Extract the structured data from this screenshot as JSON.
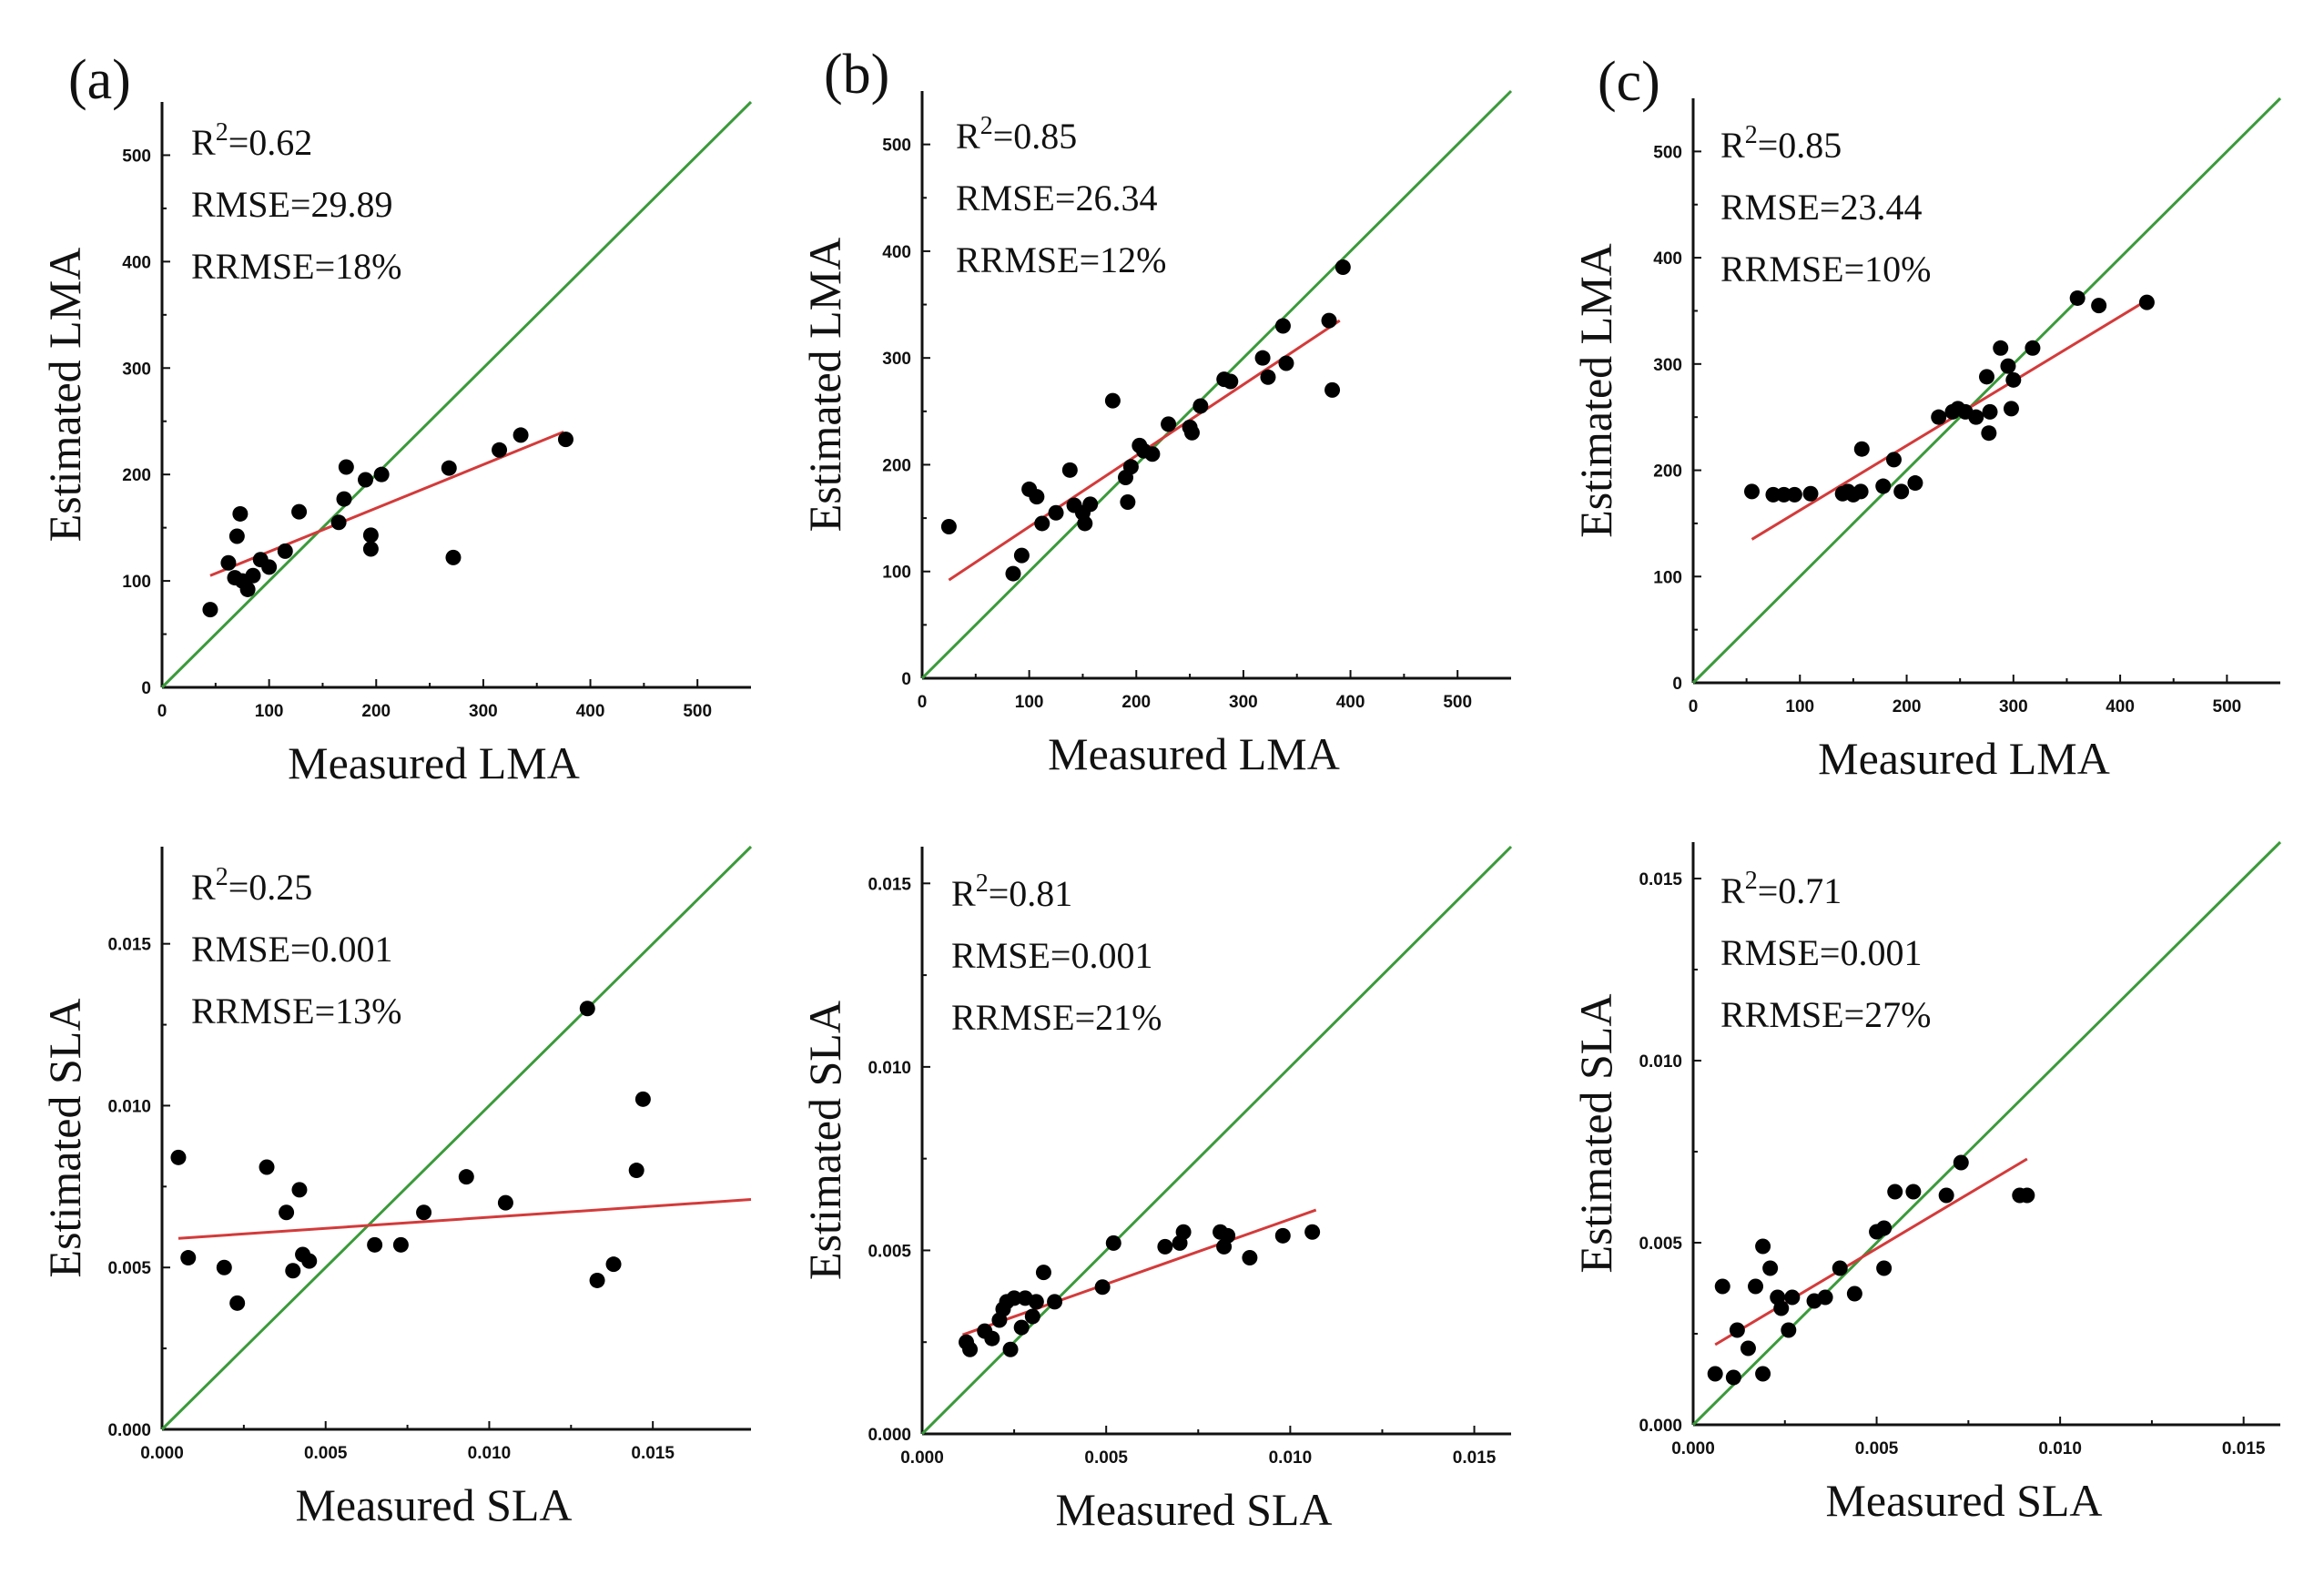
{
  "figure": {
    "colors": {
      "identity_line": "#3a9a3a",
      "fit_line": "#d43a3a",
      "points": "#000000",
      "axis": "#111111"
    }
  },
  "chart_data": [
    {
      "id": "a-lma",
      "type": "scatter",
      "panel_label": "(a)",
      "xlabel": "Measured LMA",
      "ylabel": "Estimated LMA",
      "xlim": [
        0,
        550
      ],
      "ylim": [
        0,
        550
      ],
      "xticks": [
        0,
        100,
        200,
        300,
        400,
        500
      ],
      "yticks": [
        0,
        100,
        200,
        300,
        400,
        500
      ],
      "tick_labels_x": [
        "0",
        "100",
        "200",
        "300",
        "400",
        "500"
      ],
      "tick_labels_y": [
        "0",
        "100",
        "200",
        "300",
        "400",
        "500"
      ],
      "stats": {
        "r2_prefix": "R",
        "r2_exp": "2",
        "r2_value": "=0.62",
        "rmse": "RMSE=29.89",
        "rrmse": "RRMSE=18%"
      },
      "fit_line": [
        [
          45,
          105
        ],
        [
          375,
          240
        ]
      ],
      "points": [
        [
          45,
          73
        ],
        [
          62,
          117
        ],
        [
          68,
          103
        ],
        [
          70,
          142
        ],
        [
          73,
          163
        ],
        [
          75,
          100
        ],
        [
          80,
          92
        ],
        [
          85,
          105
        ],
        [
          92,
          120
        ],
        [
          100,
          113
        ],
        [
          115,
          128
        ],
        [
          128,
          165
        ],
        [
          165,
          155
        ],
        [
          170,
          177
        ],
        [
          172,
          207
        ],
        [
          190,
          195
        ],
        [
          195,
          143
        ],
        [
          195,
          130
        ],
        [
          205,
          200
        ],
        [
          268,
          206
        ],
        [
          272,
          122
        ],
        [
          315,
          223
        ],
        [
          335,
          237
        ],
        [
          377,
          233
        ]
      ]
    },
    {
      "id": "b-lma",
      "type": "scatter",
      "panel_label": "(b)",
      "xlabel": "Measured LMA",
      "ylabel": "Estimated LMA",
      "xlim": [
        0,
        550
      ],
      "ylim": [
        0,
        550
      ],
      "xticks": [
        0,
        100,
        200,
        300,
        400,
        500
      ],
      "yticks": [
        0,
        100,
        200,
        300,
        400,
        500
      ],
      "tick_labels_x": [
        "0",
        "100",
        "200",
        "300",
        "400",
        "500"
      ],
      "tick_labels_y": [
        "0",
        "100",
        "200",
        "300",
        "400",
        "500"
      ],
      "stats": {
        "r2_prefix": "R",
        "r2_exp": "2",
        "r2_value": "=0.85",
        "rmse": "RMSE=26.34",
        "rrmse": "RRMSE=12%"
      },
      "fit_line": [
        [
          25,
          92
        ],
        [
          390,
          335
        ]
      ],
      "points": [
        [
          25,
          142
        ],
        [
          85,
          98
        ],
        [
          93,
          115
        ],
        [
          100,
          177
        ],
        [
          107,
          170
        ],
        [
          112,
          145
        ],
        [
          125,
          155
        ],
        [
          138,
          195
        ],
        [
          142,
          162
        ],
        [
          150,
          155
        ],
        [
          152,
          145
        ],
        [
          157,
          163
        ],
        [
          178,
          260
        ],
        [
          190,
          188
        ],
        [
          192,
          165
        ],
        [
          195,
          198
        ],
        [
          203,
          218
        ],
        [
          207,
          213
        ],
        [
          215,
          210
        ],
        [
          230,
          238
        ],
        [
          250,
          235
        ],
        [
          252,
          230
        ],
        [
          260,
          255
        ],
        [
          282,
          280
        ],
        [
          288,
          278
        ],
        [
          318,
          300
        ],
        [
          323,
          282
        ],
        [
          337,
          330
        ],
        [
          340,
          295
        ],
        [
          380,
          335
        ],
        [
          383,
          270
        ],
        [
          393,
          385
        ]
      ]
    },
    {
      "id": "c-lma",
      "type": "scatter",
      "panel_label": "(c)",
      "xlabel": "Measured LMA",
      "ylabel": "Estimated LMA",
      "xlim": [
        0,
        550
      ],
      "ylim": [
        0,
        550
      ],
      "xticks": [
        0,
        100,
        200,
        300,
        400,
        500
      ],
      "yticks": [
        0,
        100,
        200,
        300,
        400,
        500
      ],
      "tick_labels_x": [
        "0",
        "100",
        "200",
        "300",
        "400",
        "500"
      ],
      "tick_labels_y": [
        "0",
        "100",
        "200",
        "300",
        "400",
        "500"
      ],
      "stats": {
        "r2_prefix": "R",
        "r2_exp": "2",
        "r2_value": "=0.85",
        "rmse": "RMSE=23.44",
        "rrmse": "RRMSE=10%"
      },
      "fit_line": [
        [
          55,
          135
        ],
        [
          425,
          360
        ]
      ],
      "points": [
        [
          55,
          180
        ],
        [
          75,
          177
        ],
        [
          85,
          177
        ],
        [
          95,
          177
        ],
        [
          110,
          178
        ],
        [
          140,
          178
        ],
        [
          145,
          180
        ],
        [
          150,
          177
        ],
        [
          157,
          180
        ],
        [
          158,
          220
        ],
        [
          178,
          185
        ],
        [
          188,
          210
        ],
        [
          195,
          180
        ],
        [
          208,
          188
        ],
        [
          230,
          250
        ],
        [
          243,
          255
        ],
        [
          248,
          258
        ],
        [
          255,
          255
        ],
        [
          265,
          250
        ],
        [
          275,
          288
        ],
        [
          277,
          235
        ],
        [
          278,
          255
        ],
        [
          288,
          315
        ],
        [
          295,
          298
        ],
        [
          298,
          258
        ],
        [
          300,
          285
        ],
        [
          318,
          315
        ],
        [
          360,
          362
        ],
        [
          380,
          355
        ],
        [
          425,
          358
        ]
      ]
    },
    {
      "id": "a-sla",
      "type": "scatter",
      "xlabel": "Measured SLA",
      "ylabel": "Estimated SLA",
      "xlim": [
        0,
        0.018
      ],
      "ylim": [
        0,
        0.018
      ],
      "xticks": [
        0,
        0.005,
        0.01,
        0.015
      ],
      "yticks": [
        0,
        0.005,
        0.01,
        0.015
      ],
      "tick_labels_x": [
        "0.000",
        "0.005",
        "0.010",
        "0.015"
      ],
      "tick_labels_y": [
        "0.000",
        "0.005",
        "0.010",
        "0.015"
      ],
      "stats": {
        "r2_prefix": "R",
        "r2_exp": "2",
        "r2_value": "=0.25",
        "rmse": "RMSE=0.001",
        "rrmse": "RRMSE=13%"
      },
      "fit_line": [
        [
          0.0005,
          0.0059
        ],
        [
          0.018,
          0.0071
        ]
      ],
      "points": [
        [
          0.0005,
          0.0084
        ],
        [
          0.0008,
          0.0053
        ],
        [
          0.0019,
          0.005
        ],
        [
          0.0023,
          0.0039
        ],
        [
          0.0032,
          0.0081
        ],
        [
          0.0038,
          0.0067
        ],
        [
          0.004,
          0.0049
        ],
        [
          0.0042,
          0.0074
        ],
        [
          0.0043,
          0.0054
        ],
        [
          0.0045,
          0.0052
        ],
        [
          0.0065,
          0.0057
        ],
        [
          0.0073,
          0.0057
        ],
        [
          0.008,
          0.0067
        ],
        [
          0.0093,
          0.0078
        ],
        [
          0.0105,
          0.007
        ],
        [
          0.013,
          0.013
        ],
        [
          0.0133,
          0.0046
        ],
        [
          0.0138,
          0.0051
        ],
        [
          0.0145,
          0.008
        ],
        [
          0.0147,
          0.0102
        ]
      ]
    },
    {
      "id": "b-sla",
      "type": "scatter",
      "xlabel": "Measured SLA",
      "ylabel": "Estimated SLA",
      "xlim": [
        0,
        0.016
      ],
      "ylim": [
        0,
        0.016
      ],
      "xticks": [
        0,
        0.005,
        0.01,
        0.015
      ],
      "yticks": [
        0,
        0.005,
        0.01,
        0.015
      ],
      "tick_labels_x": [
        "0.000",
        "0.005",
        "0.010",
        "0.015"
      ],
      "tick_labels_y": [
        "0.000",
        "0.005",
        "0.010",
        "0.015"
      ],
      "stats": {
        "r2_prefix": "R",
        "r2_exp": "2",
        "r2_value": "=0.81",
        "rmse": "RMSE=0.001",
        "rrmse": "RRMSE=21%"
      },
      "fit_line": [
        [
          0.0011,
          0.0027
        ],
        [
          0.0107,
          0.0061
        ]
      ],
      "points": [
        [
          0.0012,
          0.0025
        ],
        [
          0.0013,
          0.0023
        ],
        [
          0.0017,
          0.0028
        ],
        [
          0.0019,
          0.0026
        ],
        [
          0.0021,
          0.0031
        ],
        [
          0.0022,
          0.0034
        ],
        [
          0.0023,
          0.0036
        ],
        [
          0.0024,
          0.0023
        ],
        [
          0.0025,
          0.0037
        ],
        [
          0.0027,
          0.0029
        ],
        [
          0.0028,
          0.0037
        ],
        [
          0.003,
          0.0032
        ],
        [
          0.0031,
          0.0036
        ],
        [
          0.0033,
          0.0044
        ],
        [
          0.0036,
          0.0036
        ],
        [
          0.0049,
          0.004
        ],
        [
          0.0052,
          0.0052
        ],
        [
          0.0066,
          0.0051
        ],
        [
          0.007,
          0.0052
        ],
        [
          0.0071,
          0.0055
        ],
        [
          0.0081,
          0.0055
        ],
        [
          0.0082,
          0.0051
        ],
        [
          0.0083,
          0.0054
        ],
        [
          0.0089,
          0.0048
        ],
        [
          0.0098,
          0.0054
        ],
        [
          0.0106,
          0.0055
        ]
      ]
    },
    {
      "id": "c-sla",
      "type": "scatter",
      "xlabel": "Measured SLA",
      "ylabel": "Estimated SLA",
      "xlim": [
        0,
        0.016
      ],
      "ylim": [
        0,
        0.016
      ],
      "xticks": [
        0,
        0.005,
        0.01,
        0.015
      ],
      "yticks": [
        0,
        0.005,
        0.01,
        0.015
      ],
      "tick_labels_x": [
        "0.000",
        "0.005",
        "0.010",
        "0.015"
      ],
      "tick_labels_y": [
        "0.000",
        "0.005",
        "0.010",
        "0.015"
      ],
      "stats": {
        "r2_prefix": "R",
        "r2_exp": "2",
        "r2_value": "=0.71",
        "rmse": "RMSE=0.001",
        "rrmse": "RRMSE=27%"
      },
      "fit_line": [
        [
          0.0006,
          0.0022
        ],
        [
          0.0091,
          0.0073
        ]
      ],
      "points": [
        [
          0.0006,
          0.0014
        ],
        [
          0.0008,
          0.0038
        ],
        [
          0.0011,
          0.0013
        ],
        [
          0.0012,
          0.0026
        ],
        [
          0.0015,
          0.0021
        ],
        [
          0.0017,
          0.0038
        ],
        [
          0.0019,
          0.0049
        ],
        [
          0.0019,
          0.0014
        ],
        [
          0.0021,
          0.0043
        ],
        [
          0.0023,
          0.0035
        ],
        [
          0.0024,
          0.0032
        ],
        [
          0.0026,
          0.0026
        ],
        [
          0.0027,
          0.0035
        ],
        [
          0.0033,
          0.0034
        ],
        [
          0.0036,
          0.0035
        ],
        [
          0.004,
          0.0043
        ],
        [
          0.0044,
          0.0036
        ],
        [
          0.005,
          0.0053
        ],
        [
          0.0052,
          0.0054
        ],
        [
          0.0052,
          0.0043
        ],
        [
          0.0055,
          0.0064
        ],
        [
          0.006,
          0.0064
        ],
        [
          0.0069,
          0.0063
        ],
        [
          0.0073,
          0.0072
        ],
        [
          0.0089,
          0.0063
        ],
        [
          0.0091,
          0.0063
        ]
      ]
    }
  ]
}
